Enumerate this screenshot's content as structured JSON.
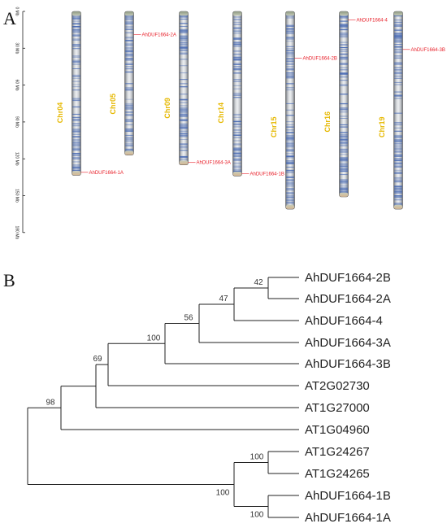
{
  "panels": {
    "a": "A",
    "b": "B"
  },
  "colors": {
    "gene": "#e8202a",
    "chromosome_label": "#e6b800",
    "density_band": "#3a5fb0"
  },
  "scale_unit": "Mb",
  "scale_ticks": [
    {
      "value": 0,
      "label": "0 Mb"
    },
    {
      "value": 30,
      "label": "30 Mb"
    },
    {
      "value": 60,
      "label": "60 Mb"
    },
    {
      "value": 90,
      "label": "90 Mb"
    },
    {
      "value": 120,
      "label": "120 Mb"
    },
    {
      "value": 150,
      "label": "150 Mb"
    },
    {
      "value": 180,
      "label": "180 Mb"
    }
  ],
  "chromosomes": [
    {
      "name": "Chr04",
      "length": 133.5,
      "genes": [
        {
          "name": "AhDUF1664-1A",
          "pos": 131
        }
      ]
    },
    {
      "name": "Chr05",
      "length": 117,
      "genes": [
        {
          "name": "AhDUF1664-2A",
          "pos": 19
        }
      ]
    },
    {
      "name": "Chr09",
      "length": 125,
      "genes": [
        {
          "name": "AhDUF1664-3A",
          "pos": 123
        }
      ]
    },
    {
      "name": "Chr14",
      "length": 134,
      "genes": [
        {
          "name": "AhDUF1664-1B",
          "pos": 132
        }
      ]
    },
    {
      "name": "Chr15",
      "length": 161,
      "genes": [
        {
          "name": "AhDUF1664-2B",
          "pos": 38
        }
      ]
    },
    {
      "name": "Chr16",
      "length": 151,
      "genes": [
        {
          "name": "AhDUF1664-4",
          "pos": 7
        }
      ]
    },
    {
      "name": "Chr19",
      "length": 161,
      "genes": [
        {
          "name": "AhDUF1664-3B",
          "pos": 31
        }
      ]
    }
  ],
  "tree": {
    "leaves": [
      "AhDUF1664-2B",
      "AhDUF1664-2A",
      "AhDUF1664-4",
      "AhDUF1664-3A",
      "AhDUF1664-3B",
      "AT2G02730",
      "AT1G27000",
      "AT1G04960",
      "AT1G24267",
      "AT1G24265",
      "AhDUF1664-1B",
      "AhDUF1664-1A"
    ],
    "bootstrap": [
      "42",
      "47",
      "56",
      "100",
      "69",
      "98",
      "100",
      "100",
      "100"
    ]
  }
}
